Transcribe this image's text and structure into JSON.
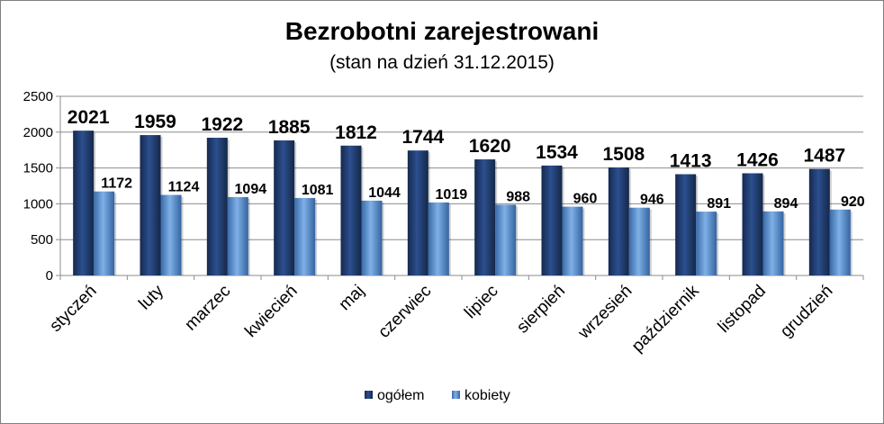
{
  "chart_data": {
    "type": "bar",
    "title": "Bezrobotni zarejestrowani",
    "subtitle": "(stan na dzień 31.12.2015)",
    "categories": [
      "styczeń",
      "luty",
      "marzec",
      "kwiecień",
      "maj",
      "czerwiec",
      "lipiec",
      "sierpień",
      "wrzesień",
      "październik",
      "listopad",
      "grudzień"
    ],
    "series": [
      {
        "name": "ogółem",
        "values": [
          2021,
          1959,
          1922,
          1885,
          1812,
          1744,
          1620,
          1534,
          1508,
          1413,
          1426,
          1487
        ],
        "color": "#1f3b6e"
      },
      {
        "name": "kobiety",
        "values": [
          1172,
          1124,
          1094,
          1081,
          1044,
          1019,
          988,
          960,
          946,
          891,
          894,
          920
        ],
        "color": "#4f86c6"
      }
    ],
    "yticks": [
      "0",
      "500",
      "1000",
      "1500",
      "2000",
      "2500"
    ],
    "ylim": [
      0,
      2500
    ],
    "xlabel": "",
    "ylabel": "",
    "grid": true,
    "legend": "bottom-center"
  }
}
